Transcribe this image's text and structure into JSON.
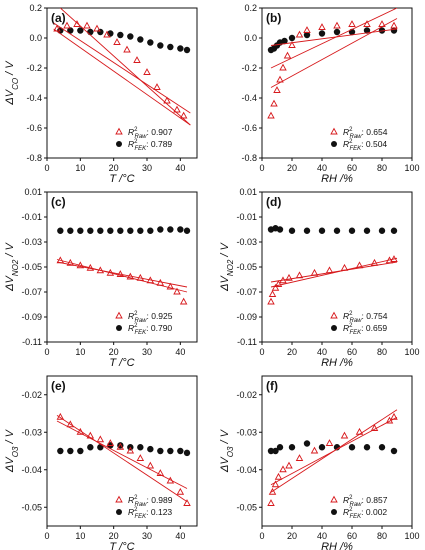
{
  "chart_data": [
    {
      "type": "scatter",
      "panel_label": "(a)",
      "xlabel": "T /°C",
      "ylabel": "ΔV_CO / V",
      "xlim": [
        0,
        45
      ],
      "ylim": [
        -0.8,
        0.2
      ],
      "xticks": [
        "0",
        "10",
        "20",
        "30",
        "40"
      ],
      "yticks": [
        "0.2",
        "0.0",
        "-0.2",
        "-0.4",
        "-0.6",
        "-0.8"
      ],
      "legend_position": "bottom-right",
      "legend": [
        {
          "sym": "R",
          "sub": "Raw",
          "value": "0.907"
        },
        {
          "sym": "R",
          "sub": "FEK",
          "value": "0.789"
        }
      ],
      "series": [
        {
          "marker": "open-triangle",
          "color": "#d7191c",
          "x": [
            3,
            6,
            9,
            12,
            15,
            18,
            21,
            24,
            27,
            30,
            33,
            36,
            39,
            41
          ],
          "y": [
            0.06,
            0.08,
            0.09,
            0.08,
            0.06,
            0.02,
            -0.03,
            -0.08,
            -0.15,
            -0.23,
            -0.33,
            -0.42,
            -0.48,
            -0.52
          ]
        },
        {
          "marker": "filled-circle",
          "color": "#111111",
          "x": [
            4,
            7,
            10,
            13,
            16,
            19,
            22,
            25,
            28,
            31,
            34,
            37,
            40,
            42
          ],
          "y": [
            0.05,
            0.05,
            0.05,
            0.04,
            0.04,
            0.03,
            0.02,
            0.01,
            -0.01,
            -0.03,
            -0.05,
            -0.06,
            -0.07,
            -0.08
          ]
        }
      ],
      "fit_lines": [
        {
          "color": "#d7191c",
          "x": [
            2,
            43
          ],
          "y": [
            0.24,
            -0.58
          ]
        },
        {
          "color": "#d7191c",
          "x": [
            2,
            43
          ],
          "y": [
            0.1,
            -0.5
          ]
        },
        {
          "color": "#d7191c",
          "x": [
            2,
            43
          ],
          "y": [
            0.06,
            -0.58
          ]
        }
      ]
    },
    {
      "type": "scatter",
      "panel_label": "(b)",
      "xlabel": "RH /%",
      "ylabel": "",
      "xlim": [
        0,
        100
      ],
      "ylim": [
        -0.8,
        0.2
      ],
      "xticks": [
        "0",
        "20",
        "40",
        "60",
        "80",
        "100"
      ],
      "yticks": [
        "0.2",
        "0.0",
        "-0.2",
        "-0.4",
        "-0.6",
        "-0.8"
      ],
      "legend_position": "bottom-right",
      "legend": [
        {
          "sym": "R",
          "sub": "Raw",
          "value": "0.654"
        },
        {
          "sym": "R",
          "sub": "FEK",
          "value": "0.504"
        }
      ],
      "series": [
        {
          "marker": "open-triangle",
          "color": "#d7191c",
          "x": [
            6,
            8,
            10,
            12,
            14,
            17,
            20,
            25,
            30,
            40,
            50,
            60,
            70,
            80,
            88
          ],
          "y": [
            -0.52,
            -0.44,
            -0.35,
            -0.28,
            -0.2,
            -0.12,
            -0.05,
            0.02,
            0.05,
            0.07,
            0.08,
            0.09,
            0.09,
            0.09,
            0.08
          ]
        },
        {
          "marker": "filled-circle",
          "color": "#111111",
          "x": [
            6,
            8,
            10,
            12,
            15,
            20,
            30,
            40,
            50,
            60,
            70,
            80,
            88
          ],
          "y": [
            -0.08,
            -0.07,
            -0.05,
            -0.03,
            -0.02,
            0.0,
            0.02,
            0.03,
            0.04,
            0.04,
            0.05,
            0.05,
            0.05
          ]
        }
      ],
      "fit_lines": [
        {
          "color": "#d7191c",
          "x": [
            6,
            90
          ],
          "y": [
            -0.33,
            0.13
          ]
        },
        {
          "color": "#d7191c",
          "x": [
            6,
            90
          ],
          "y": [
            -0.2,
            0.2
          ]
        },
        {
          "color": "#d7191c",
          "x": [
            6,
            90
          ],
          "y": [
            -0.05,
            0.06
          ]
        }
      ]
    },
    {
      "type": "scatter",
      "panel_label": "(c)",
      "xlabel": "T /°C",
      "ylabel": "ΔV_NO2 / V",
      "xlim": [
        0,
        45
      ],
      "ylim": [
        -0.11,
        0.01
      ],
      "xticks": [
        "0",
        "10",
        "20",
        "30",
        "40"
      ],
      "yticks": [
        "0.01",
        "-0.01",
        "-0.03",
        "-0.05",
        "-0.07",
        "-0.09",
        "-0.11"
      ],
      "legend_position": "bottom-right",
      "legend": [
        {
          "sym": "R",
          "sub": "Raw",
          "value": "0.925"
        },
        {
          "sym": "R",
          "sub": "FEK",
          "value": "0.790"
        }
      ],
      "series": [
        {
          "marker": "open-triangle",
          "color": "#d7191c",
          "x": [
            4,
            7,
            10,
            13,
            16,
            19,
            22,
            25,
            28,
            31,
            34,
            37,
            39,
            41
          ],
          "y": [
            -0.045,
            -0.047,
            -0.049,
            -0.051,
            -0.053,
            -0.055,
            -0.056,
            -0.058,
            -0.059,
            -0.061,
            -0.063,
            -0.066,
            -0.07,
            -0.078
          ]
        },
        {
          "marker": "filled-circle",
          "color": "#111111",
          "x": [
            4,
            7,
            10,
            13,
            16,
            19,
            22,
            25,
            28,
            31,
            34,
            37,
            40,
            42
          ],
          "y": [
            -0.021,
            -0.021,
            -0.021,
            -0.021,
            -0.021,
            -0.021,
            -0.021,
            -0.021,
            -0.021,
            -0.021,
            -0.02,
            -0.02,
            -0.02,
            -0.021
          ]
        }
      ],
      "fit_lines": [
        {
          "color": "#d7191c",
          "x": [
            3,
            42
          ],
          "y": [
            -0.044,
            -0.07
          ]
        },
        {
          "color": "#d7191c",
          "x": [
            3,
            42
          ],
          "y": [
            -0.046,
            -0.066
          ]
        }
      ]
    },
    {
      "type": "scatter",
      "panel_label": "(d)",
      "xlabel": "RH /%",
      "ylabel": "ΔV_NO2 / V",
      "xlim": [
        0,
        100
      ],
      "ylim": [
        -0.11,
        0.01
      ],
      "xticks": [
        "0",
        "20",
        "40",
        "60",
        "80",
        "100"
      ],
      "yticks": [
        "0.01",
        "-0.01",
        "-0.03",
        "-0.05",
        "-0.07",
        "-0.09",
        "-0.11"
      ],
      "legend_position": "bottom-right",
      "legend": [
        {
          "sym": "R",
          "sub": "Raw",
          "value": "0.754"
        },
        {
          "sym": "R",
          "sub": "FEK",
          "value": "0.659"
        }
      ],
      "series": [
        {
          "marker": "open-triangle",
          "color": "#d7191c",
          "x": [
            6,
            7,
            9,
            11,
            14,
            18,
            25,
            35,
            45,
            55,
            65,
            75,
            85,
            88
          ],
          "y": [
            -0.078,
            -0.072,
            -0.067,
            -0.064,
            -0.061,
            -0.059,
            -0.057,
            -0.055,
            -0.053,
            -0.051,
            -0.049,
            -0.047,
            -0.045,
            -0.044
          ]
        },
        {
          "marker": "filled-circle",
          "color": "#111111",
          "x": [
            6,
            9,
            12,
            20,
            30,
            40,
            50,
            60,
            70,
            80,
            88
          ],
          "y": [
            -0.02,
            -0.019,
            -0.02,
            -0.021,
            -0.021,
            -0.021,
            -0.021,
            -0.021,
            -0.021,
            -0.021,
            -0.021
          ]
        }
      ],
      "fit_lines": [
        {
          "color": "#d7191c",
          "x": [
            6,
            90
          ],
          "y": [
            -0.066,
            -0.043
          ]
        },
        {
          "color": "#d7191c",
          "x": [
            6,
            90
          ],
          "y": [
            -0.062,
            -0.046
          ]
        }
      ]
    },
    {
      "type": "scatter",
      "panel_label": "(e)",
      "xlabel": "T /°C",
      "ylabel": "ΔV_O3 / V",
      "xlim": [
        0,
        45
      ],
      "ylim": [
        -0.055,
        -0.015
      ],
      "xticks": [
        "0",
        "10",
        "20",
        "30",
        "40"
      ],
      "yticks": [
        "-0.02",
        "-0.03",
        "-0.04",
        "-0.05"
      ],
      "legend_position": "bottom-right",
      "legend": [
        {
          "sym": "R",
          "sub": "Raw",
          "value": "0.989"
        },
        {
          "sym": "R",
          "sub": "FEK",
          "value": "0.123"
        }
      ],
      "series": [
        {
          "marker": "open-triangle",
          "color": "#d7191c",
          "x": [
            4,
            7,
            10,
            13,
            16,
            19,
            22,
            25,
            28,
            31,
            34,
            37,
            40,
            42
          ],
          "y": [
            -0.026,
            -0.028,
            -0.03,
            -0.031,
            -0.032,
            -0.033,
            -0.034,
            -0.035,
            -0.037,
            -0.039,
            -0.041,
            -0.043,
            -0.046,
            -0.049
          ]
        },
        {
          "marker": "filled-circle",
          "color": "#111111",
          "x": [
            4,
            7,
            10,
            13,
            16,
            19,
            22,
            25,
            28,
            31,
            34,
            37,
            40,
            42
          ],
          "y": [
            -0.035,
            -0.035,
            -0.035,
            -0.034,
            -0.034,
            -0.0335,
            -0.0335,
            -0.034,
            -0.034,
            -0.0345,
            -0.035,
            -0.035,
            -0.035,
            -0.0355
          ]
        }
      ],
      "fit_lines": [
        {
          "color": "#d7191c",
          "x": [
            3,
            42
          ],
          "y": [
            -0.0255,
            -0.0485
          ]
        },
        {
          "color": "#d7191c",
          "x": [
            3,
            42
          ],
          "y": [
            -0.027,
            -0.045
          ]
        }
      ]
    },
    {
      "type": "scatter",
      "panel_label": "(f)",
      "xlabel": "RH /%",
      "ylabel": "ΔV_O3 / V",
      "xlim": [
        0,
        100
      ],
      "ylim": [
        -0.055,
        -0.015
      ],
      "xticks": [
        "0",
        "20",
        "40",
        "60",
        "80",
        "100"
      ],
      "yticks": [
        "-0.02",
        "-0.03",
        "-0.04",
        "-0.05"
      ],
      "legend_position": "bottom-right",
      "legend": [
        {
          "sym": "R",
          "sub": "Raw",
          "value": "0.857"
        },
        {
          "sym": "R",
          "sub": "FEK",
          "value": "0.002"
        }
      ],
      "series": [
        {
          "marker": "open-triangle",
          "color": "#d7191c",
          "x": [
            6,
            7,
            9,
            11,
            14,
            18,
            25,
            35,
            45,
            55,
            65,
            75,
            85,
            88
          ],
          "y": [
            -0.049,
            -0.046,
            -0.044,
            -0.042,
            -0.04,
            -0.039,
            -0.037,
            -0.035,
            -0.033,
            -0.031,
            -0.03,
            -0.029,
            -0.027,
            -0.026
          ]
        },
        {
          "marker": "filled-circle",
          "color": "#111111",
          "x": [
            6,
            9,
            12,
            20,
            30,
            40,
            50,
            60,
            70,
            80,
            88
          ],
          "y": [
            -0.035,
            -0.035,
            -0.034,
            -0.034,
            -0.033,
            -0.034,
            -0.034,
            -0.034,
            -0.034,
            -0.034,
            -0.035
          ]
        }
      ],
      "fit_lines": [
        {
          "color": "#d7191c",
          "x": [
            6,
            90
          ],
          "y": [
            -0.046,
            -0.024
          ]
        },
        {
          "color": "#d7191c",
          "x": [
            6,
            90
          ],
          "y": [
            -0.044,
            -0.026
          ]
        }
      ]
    }
  ]
}
